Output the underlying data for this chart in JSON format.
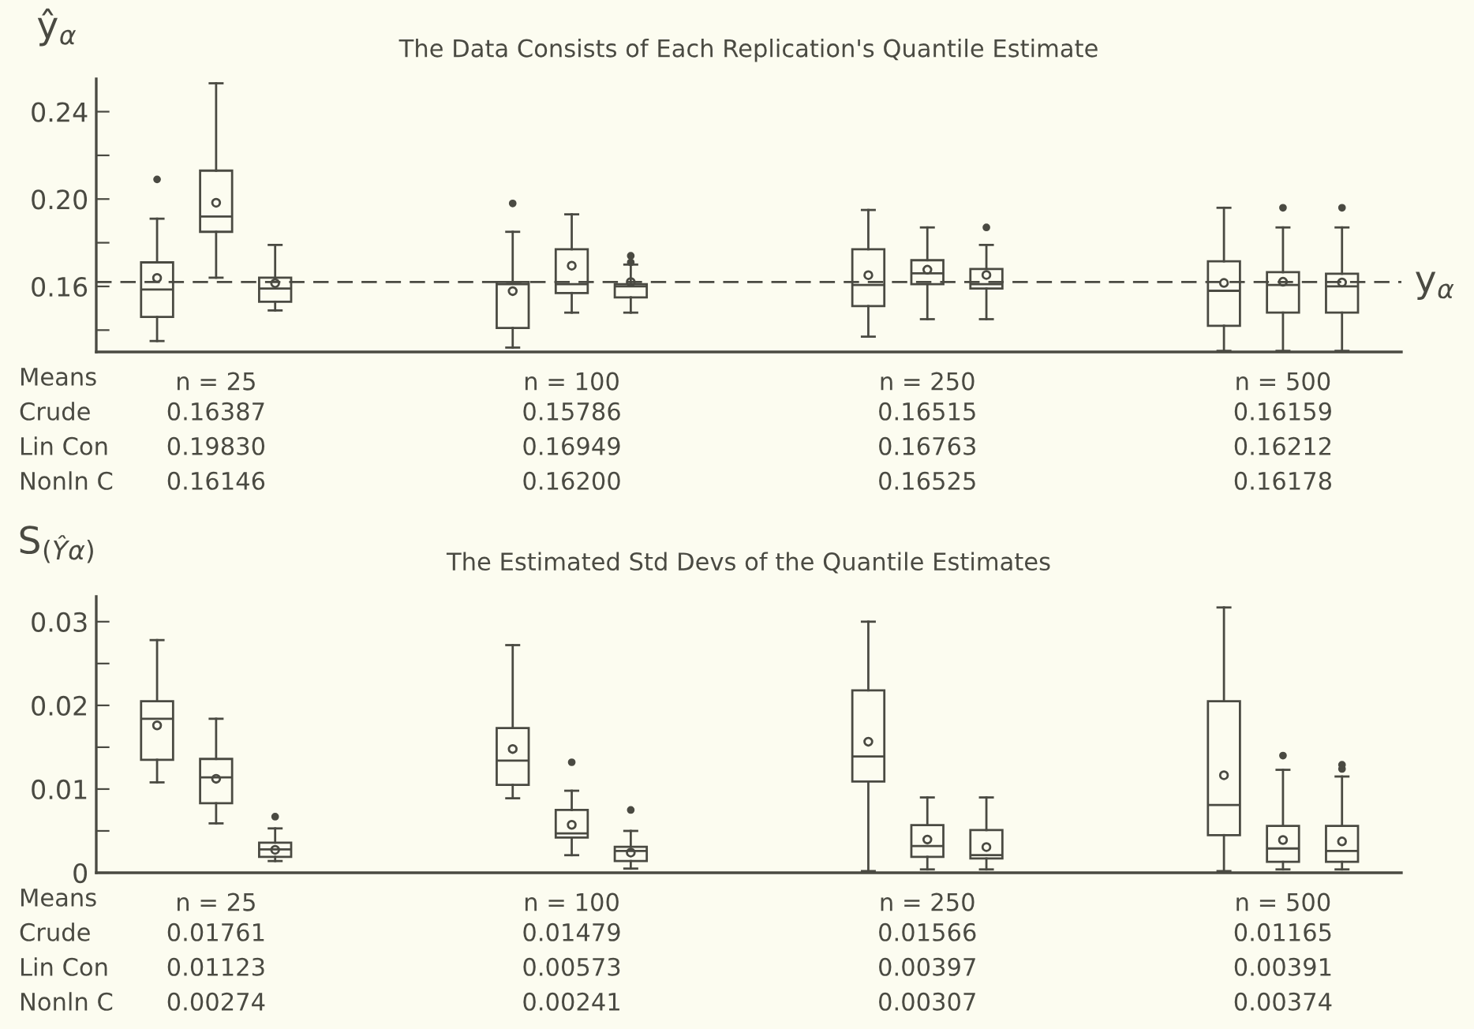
{
  "chart_data": [
    {
      "type": "box",
      "title": "The Data Consists of Each Replication's Quantile Estimate",
      "ylabel": "ŷ$_{α}$",
      "categories": [
        "n = 25",
        "n = 100",
        "n = 250",
        "n = 500"
      ],
      "ylim": [
        0.13,
        0.255
      ],
      "yticks": [
        {
          "value": 0.14,
          "label": null
        },
        0.16,
        {
          "value": 0.18,
          "label": null
        },
        {
          "value": 0.2,
          "label": "0.20"
        },
        {
          "value": 0.22,
          "label": null
        },
        0.24
      ],
      "grid": false,
      "ref_lines": [
        {
          "axis": "y",
          "value": 0.162,
          "label": "y$_{α}$",
          "line_style": "dashed"
        }
      ],
      "annotations": [
        "Means",
        "Crude",
        "Lin Con",
        "Nonln C"
      ],
      "series": [
        {
          "value_labels": [
            "0.16387",
            "0.15786",
            "0.16515",
            "0.16159"
          ],
          "boxes": [
            {
              "low": 0.135,
              "q1": 0.146,
              "median": 0.1586,
              "q3": 0.171,
              "high": 0.191,
              "mean": 0.16387,
              "outliers": [
                0.209
              ]
            },
            {
              "low": 0.132,
              "q1": 0.141,
              "median": 0.161,
              "q3": 0.162,
              "high": 0.185,
              "mean": 0.15786,
              "outliers": [
                0.198
              ]
            },
            {
              "low": 0.137,
              "q1": 0.151,
              "median": 0.1607,
              "q3": 0.177,
              "high": 0.195,
              "mean": 0.16515
            },
            {
              "low": 0.1305,
              "q1": 0.142,
              "median": 0.158,
              "q3": 0.1715,
              "high": 0.196,
              "mean": 0.16159
            }
          ]
        },
        {
          "value_labels": [
            "0.19830",
            "0.16949",
            "0.16763",
            "0.16212"
          ],
          "boxes": [
            {
              "low": 0.164,
              "q1": 0.185,
              "median": 0.192,
              "q3": 0.213,
              "high": 0.253,
              "mean": 0.1983
            },
            {
              "low": 0.148,
              "q1": 0.157,
              "median": 0.161,
              "q3": 0.177,
              "high": 0.193,
              "mean": 0.16949
            },
            {
              "low": 0.145,
              "q1": 0.161,
              "median": 0.166,
              "q3": 0.172,
              "high": 0.187,
              "mean": 0.16763
            },
            {
              "low": 0.1305,
              "q1": 0.148,
              "median": 0.1607,
              "q3": 0.1665,
              "high": 0.187,
              "mean": 0.16212,
              "outliers": [
                0.196
              ]
            }
          ]
        },
        {
          "value_labels": [
            "0.16146",
            "0.16200",
            "0.16525",
            "0.16178"
          ],
          "boxes": [
            {
              "low": 0.149,
              "q1": 0.153,
              "median": 0.159,
              "q3": 0.164,
              "high": 0.179,
              "mean": 0.16146
            },
            {
              "low": 0.148,
              "q1": 0.155,
              "median": 0.16,
              "q3": 0.161,
              "high": 0.17,
              "mean": 0.162,
              "outliers": [
                0.171,
                0.174
              ]
            },
            {
              "low": 0.145,
              "q1": 0.159,
              "median": 0.161,
              "q3": 0.168,
              "high": 0.179,
              "mean": 0.16525,
              "outliers": [
                0.187
              ]
            },
            {
              "low": 0.1305,
              "q1": 0.148,
              "median": 0.16,
              "q3": 0.1658,
              "high": 0.187,
              "mean": 0.16178,
              "outliers": [
                0.196
              ]
            }
          ]
        }
      ]
    },
    {
      "type": "box",
      "title": "The Estimated Std Devs of the Quantile Estimates",
      "ylabel": "S$_{(Ŷα)}$",
      "categories": [
        "n = 25",
        "n = 100",
        "n = 250",
        "n = 500"
      ],
      "ylim": [
        0,
        0.033
      ],
      "yticks": [
        0,
        {
          "value": 0.005,
          "label": null
        },
        0.01,
        {
          "value": 0.015,
          "label": null
        },
        0.02,
        {
          "value": 0.025,
          "label": null
        },
        0.03
      ],
      "grid": false,
      "annotations": [
        "Means",
        "Crude",
        "Lin Con",
        "Nonln C"
      ],
      "series": [
        {
          "value_labels": [
            "0.01761",
            "0.01479",
            "0.01566",
            "0.01165"
          ],
          "boxes": [
            {
              "low": 0.0108,
              "q1": 0.0135,
              "median": 0.0184,
              "q3": 0.0205,
              "high": 0.0278,
              "mean": 0.01761
            },
            {
              "low": 0.0089,
              "q1": 0.0105,
              "median": 0.0134,
              "q3": 0.0173,
              "high": 0.0272,
              "mean": 0.01479
            },
            {
              "low": 0.0002,
              "q1": 0.0109,
              "median": 0.0139,
              "q3": 0.0218,
              "high": 0.03,
              "mean": 0.01566
            },
            {
              "low": 0.0002,
              "q1": 0.0045,
              "median": 0.0081,
              "q3": 0.0205,
              "high": 0.0317,
              "mean": 0.01165
            }
          ]
        },
        {
          "value_labels": [
            "0.01123",
            "0.00573",
            "0.00397",
            "0.00391"
          ],
          "boxes": [
            {
              "low": 0.0059,
              "q1": 0.0083,
              "median": 0.0114,
              "q3": 0.0136,
              "high": 0.0184,
              "mean": 0.01123
            },
            {
              "low": 0.0021,
              "q1": 0.0042,
              "median": 0.0047,
              "q3": 0.0075,
              "high": 0.0098,
              "mean": 0.00573,
              "outliers": [
                0.0132
              ]
            },
            {
              "low": 0.0004,
              "q1": 0.0019,
              "median": 0.0032,
              "q3": 0.0057,
              "high": 0.009,
              "mean": 0.00397
            },
            {
              "low": 0.0004,
              "q1": 0.0013,
              "median": 0.0029,
              "q3": 0.0056,
              "high": 0.0123,
              "mean": 0.00391,
              "outliers": [
                0.014
              ]
            }
          ]
        },
        {
          "value_labels": [
            "0.00274",
            "0.00241",
            "0.00307",
            "0.00374"
          ],
          "boxes": [
            {
              "low": 0.0014,
              "q1": 0.0019,
              "median": 0.0028,
              "q3": 0.0036,
              "high": 0.0053,
              "mean": 0.00274,
              "outliers": [
                0.0067
              ]
            },
            {
              "low": 0.0005,
              "q1": 0.0014,
              "median": 0.0026,
              "q3": 0.0031,
              "high": 0.005,
              "mean": 0.00241,
              "outliers": [
                0.0075
              ]
            },
            {
              "low": 0.0004,
              "q1": 0.0017,
              "median": 0.0021,
              "q3": 0.0051,
              "high": 0.009,
              "mean": 0.00307
            },
            {
              "low": 0.0004,
              "q1": 0.0013,
              "median": 0.0026,
              "q3": 0.0056,
              "high": 0.0115,
              "mean": 0.00374,
              "outliers": [
                0.0124,
                0.0129
              ]
            }
          ]
        }
      ]
    }
  ]
}
